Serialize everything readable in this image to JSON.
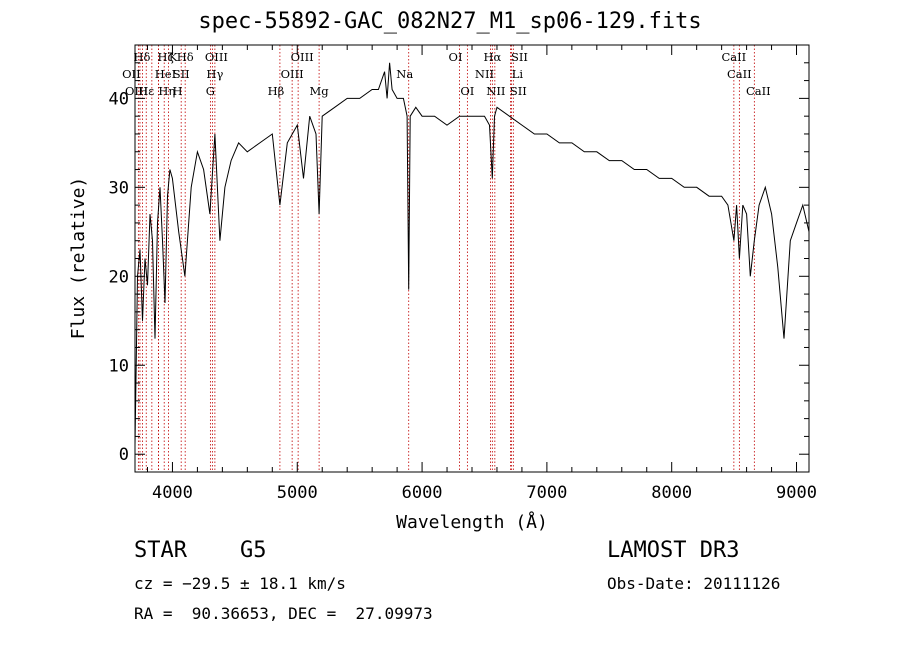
{
  "chart_data": {
    "type": "line",
    "title": "spec-55892-GAC_082N27_M1_sp06-129.fits",
    "xlabel": "Wavelength (Å)",
    "ylabel": "Flux (relative)",
    "xlim": [
      3700,
      9100
    ],
    "ylim": [
      -2,
      46
    ],
    "x_ticks": [
      4000,
      5000,
      6000,
      7000,
      8000,
      9000
    ],
    "y_ticks": [
      0,
      10,
      20,
      30,
      40
    ],
    "x_tick_labels": [
      "4000",
      "5000",
      "6000",
      "7000",
      "8000",
      "9000"
    ],
    "y_tick_labels": [
      "0",
      "10",
      "20",
      "30",
      "40"
    ],
    "series": [
      {
        "name": "flux",
        "x": [
          3700,
          3720,
          3740,
          3760,
          3780,
          3800,
          3820,
          3840,
          3860,
          3880,
          3900,
          3920,
          3940,
          3960,
          3980,
          4000,
          4050,
          4100,
          4150,
          4200,
          4250,
          4300,
          4340,
          4380,
          4420,
          4470,
          4530,
          4600,
          4700,
          4800,
          4861,
          4920,
          5000,
          5050,
          5100,
          5150,
          5175,
          5200,
          5300,
          5400,
          5500,
          5600,
          5650,
          5700,
          5720,
          5740,
          5760,
          5800,
          5850,
          5880,
          5893,
          5905,
          5950,
          6000,
          6100,
          6200,
          6300,
          6400,
          6500,
          6540,
          6563,
          6580,
          6600,
          6700,
          6800,
          6900,
          7000,
          7100,
          7200,
          7300,
          7400,
          7500,
          7600,
          7700,
          7800,
          7900,
          8000,
          8100,
          8200,
          8300,
          8400,
          8450,
          8498,
          8520,
          8542,
          8570,
          8600,
          8630,
          8662,
          8700,
          8750,
          8800,
          8850,
          8900,
          8950,
          9000,
          9050,
          9100
        ],
        "y": [
          1,
          20,
          23,
          15,
          22,
          19,
          27,
          24,
          13,
          26,
          30,
          24,
          17,
          29,
          32,
          31,
          25,
          20,
          30,
          34,
          32,
          27,
          36,
          24,
          30,
          33,
          35,
          34,
          35,
          36,
          28,
          35,
          37,
          31,
          38,
          36,
          27,
          38,
          39,
          40,
          40,
          41,
          41,
          43,
          40,
          44,
          41,
          40,
          40,
          38,
          18.5,
          38,
          39,
          38,
          38,
          37,
          38,
          38,
          38,
          37,
          31,
          38,
          39,
          38,
          37,
          36,
          36,
          35,
          35,
          34,
          34,
          33,
          33,
          32,
          32,
          31,
          31,
          30,
          30,
          29,
          29,
          28,
          24,
          28,
          22,
          28,
          27,
          20,
          24,
          28,
          30,
          27,
          21,
          13,
          24,
          26,
          28,
          25
        ]
      }
    ],
    "lines": [
      {
        "label": "Hδ",
        "x": 3740
      },
      {
        "label": "OII",
        "x": 3727
      },
      {
        "label": "OIII",
        "x": 3760
      },
      {
        "label": "Hε",
        "x": 3790
      },
      {
        "label": "Hη",
        "x": 3835
      },
      {
        "label": "Hζ",
        "x": 3889
      },
      {
        "label": "K",
        "x": 3934
      },
      {
        "label": "H",
        "x": 3969
      },
      {
        "label": "HeI",
        "x": 3888
      },
      {
        "label": "SII",
        "x": 4070
      },
      {
        "label": "Hδ",
        "x": 4102
      },
      {
        "label": "OIII",
        "x": 4320
      },
      {
        "label": "Hγ",
        "x": 4340
      },
      {
        "label": "G",
        "x": 4304
      },
      {
        "label": "Hβ",
        "x": 4861
      },
      {
        "label": "OIII",
        "x": 4959
      },
      {
        "label": "OIII",
        "x": 5007
      },
      {
        "label": "Mg",
        "x": 5175
      },
      {
        "label": "Na",
        "x": 5893
      },
      {
        "label": "OI",
        "x": 6300
      },
      {
        "label": "OI",
        "x": 6363
      },
      {
        "label": "NII",
        "x": 6548
      },
      {
        "label": "Hα",
        "x": 6563
      },
      {
        "label": "NII",
        "x": 6583
      },
      {
        "label": "SII",
        "x": 6716
      },
      {
        "label": "Li",
        "x": 6708
      },
      {
        "label": "SII",
        "x": 6731
      },
      {
        "label": "CaII",
        "x": 8498
      },
      {
        "label": "CaII",
        "x": 8542
      },
      {
        "label": "CaII",
        "x": 8662
      }
    ]
  },
  "info": {
    "object_class": "STAR",
    "subclass": "G5",
    "survey": "LAMOST DR3",
    "cz": "cz = −29.5 ± 18.1 km/s",
    "obs_date": "Obs-Date: 20111126",
    "coords": "RA =  90.36653, DEC =  27.09973"
  },
  "colors": {
    "axis": "#000000",
    "flux": "#000000",
    "line_marker": "#c00000"
  }
}
